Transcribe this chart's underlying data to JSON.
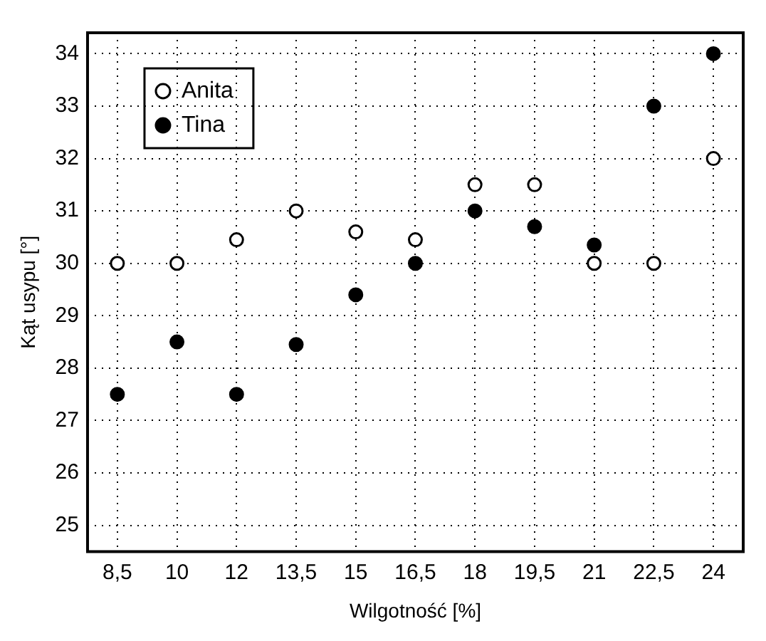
{
  "chart_data": {
    "type": "scatter",
    "xlabel": "Wilgotność [%]",
    "ylabel": "Kąt usypu [°]",
    "categories": [
      "8,5",
      "10",
      "12",
      "13,5",
      "15",
      "16,5",
      "18",
      "19,5",
      "21",
      "22,5",
      "24"
    ],
    "series": [
      {
        "name": "Anita",
        "color": "#000000",
        "values": [
          30,
          30,
          30.45,
          31,
          30.6,
          30.45,
          31.5,
          31.5,
          30,
          30,
          32
        ]
      },
      {
        "name": "Tina",
        "color": "#000000",
        "values": [
          27.5,
          28.5,
          27.5,
          28.45,
          29.4,
          30,
          31,
          30.7,
          30.35,
          33,
          34
        ]
      }
    ],
    "ylim": [
      24.5,
      34.4
    ],
    "yticks": [
      25,
      26,
      27,
      28,
      29,
      30,
      31,
      32,
      33,
      34
    ],
    "grid": true,
    "legend": "top left",
    "marker": "circle"
  }
}
